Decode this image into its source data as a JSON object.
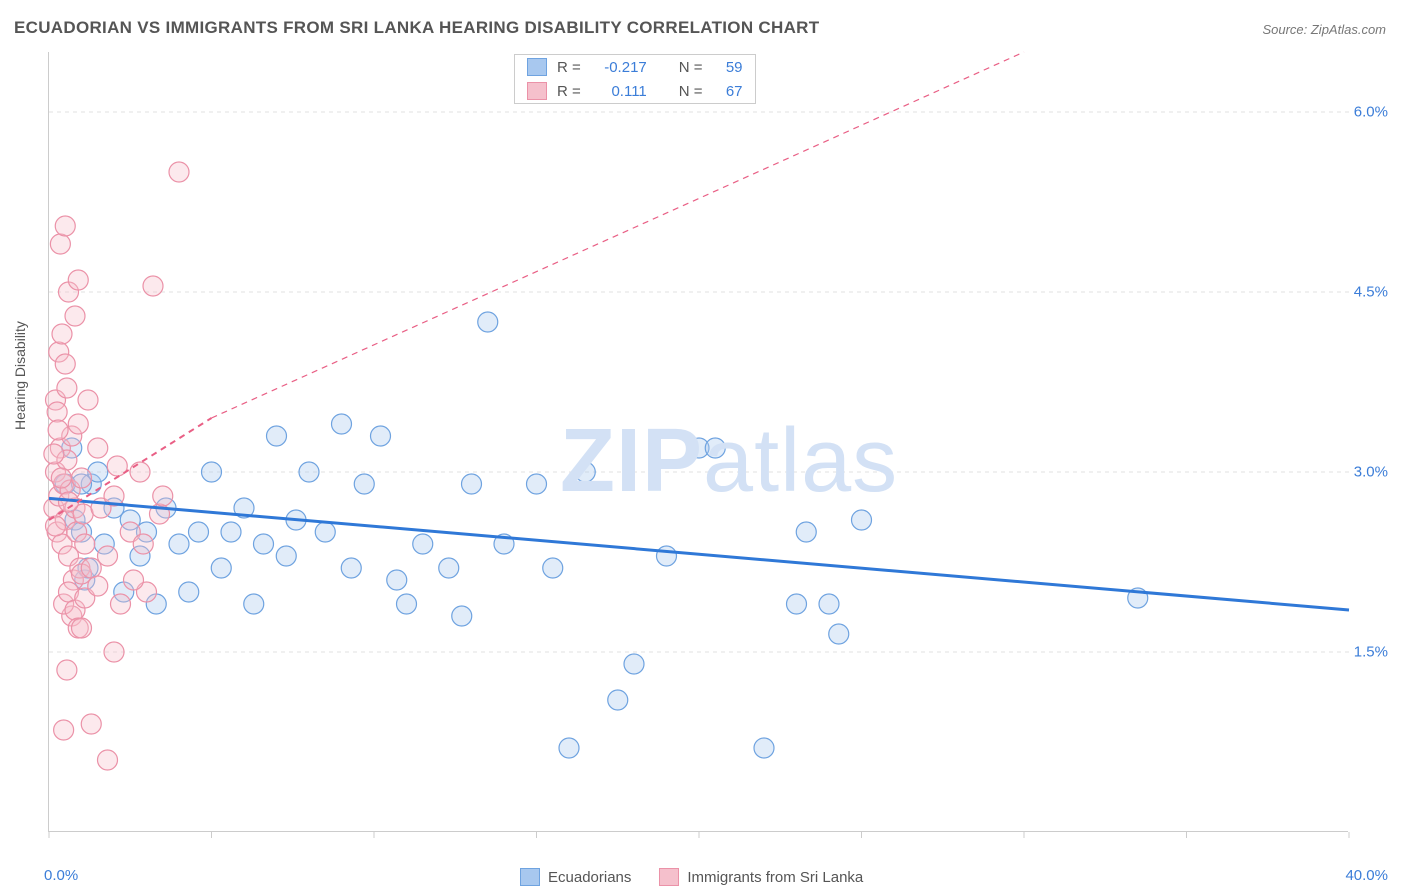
{
  "title": "ECUADORIAN VS IMMIGRANTS FROM SRI LANKA HEARING DISABILITY CORRELATION CHART",
  "source_label": "Source: ZipAtlas.com",
  "y_axis_label": "Hearing Disability",
  "watermark": {
    "bold": "ZIP",
    "light": "atlas"
  },
  "chart": {
    "type": "scatter",
    "background_color": "#ffffff",
    "grid_color": "#e0e0e0",
    "axis_color": "#cccccc",
    "tick_label_color": "#3b7dd8",
    "text_color": "#555555",
    "xlim": [
      0,
      40
    ],
    "ylim": [
      0,
      6.5
    ],
    "x_ticks": [
      0,
      5,
      10,
      15,
      20,
      25,
      30,
      35,
      40
    ],
    "x_tick_labels": {
      "0": "0.0%",
      "40": "40.0%"
    },
    "y_ticks": [
      1.5,
      3.0,
      4.5,
      6.0
    ],
    "y_tick_labels": [
      "1.5%",
      "3.0%",
      "4.5%",
      "6.0%"
    ],
    "marker_radius": 10,
    "marker_stroke_width": 1.2,
    "marker_fill_opacity": 0.35,
    "series": [
      {
        "name": "Ecuadorians",
        "color_fill": "#a8c8ef",
        "color_stroke": "#6fa3e0",
        "R": "-0.217",
        "N": "59",
        "regression": {
          "x1": 0,
          "y1": 2.78,
          "x2": 40,
          "y2": 1.85,
          "color": "#2f78d7",
          "width": 3,
          "dash": "none"
        },
        "points": [
          [
            0.5,
            2.9
          ],
          [
            0.7,
            3.2
          ],
          [
            0.8,
            2.6
          ],
          [
            1.0,
            2.5
          ],
          [
            1.1,
            2.1
          ],
          [
            1.3,
            2.9
          ],
          [
            1.5,
            3.0
          ],
          [
            1.7,
            2.4
          ],
          [
            2.0,
            2.7
          ],
          [
            2.3,
            2.0
          ],
          [
            2.5,
            2.6
          ],
          [
            2.8,
            2.3
          ],
          [
            3.0,
            2.5
          ],
          [
            3.3,
            1.9
          ],
          [
            3.6,
            2.7
          ],
          [
            4.0,
            2.4
          ],
          [
            4.3,
            2.0
          ],
          [
            4.6,
            2.5
          ],
          [
            5.0,
            3.0
          ],
          [
            5.3,
            2.2
          ],
          [
            5.6,
            2.5
          ],
          [
            6.0,
            2.7
          ],
          [
            6.3,
            1.9
          ],
          [
            6.6,
            2.4
          ],
          [
            7.0,
            3.3
          ],
          [
            7.3,
            2.3
          ],
          [
            7.6,
            2.6
          ],
          [
            8.0,
            3.0
          ],
          [
            8.5,
            2.5
          ],
          [
            9.0,
            3.4
          ],
          [
            9.3,
            2.2
          ],
          [
            9.7,
            2.9
          ],
          [
            10.2,
            3.3
          ],
          [
            10.7,
            2.1
          ],
          [
            11.0,
            1.9
          ],
          [
            11.5,
            2.4
          ],
          [
            12.3,
            2.2
          ],
          [
            12.7,
            1.8
          ],
          [
            13.0,
            2.9
          ],
          [
            13.5,
            4.25
          ],
          [
            14.0,
            2.4
          ],
          [
            15.0,
            2.9
          ],
          [
            15.5,
            2.2
          ],
          [
            16.0,
            0.7
          ],
          [
            16.5,
            3.0
          ],
          [
            17.5,
            1.1
          ],
          [
            18.0,
            1.4
          ],
          [
            19.0,
            2.3
          ],
          [
            20.0,
            3.2
          ],
          [
            20.5,
            3.2
          ],
          [
            22.0,
            0.7
          ],
          [
            23.0,
            1.9
          ],
          [
            23.3,
            2.5
          ],
          [
            24.0,
            1.9
          ],
          [
            24.3,
            1.65
          ],
          [
            25.0,
            2.6
          ],
          [
            33.5,
            1.95
          ],
          [
            1.0,
            2.9
          ],
          [
            1.2,
            2.2
          ]
        ]
      },
      {
        "name": "Immigrants from Sri Lanka",
        "color_fill": "#f5c0cc",
        "color_stroke": "#eb92a8",
        "R": "0.111",
        "N": "67",
        "regression": {
          "x1": 0,
          "y1": 2.6,
          "x2": 5,
          "y2": 3.45,
          "extrap_x2": 30,
          "extrap_y2": 6.5,
          "color": "#e95f85",
          "width": 2,
          "dash": "6,5"
        },
        "points": [
          [
            0.15,
            2.7
          ],
          [
            0.2,
            3.0
          ],
          [
            0.25,
            2.5
          ],
          [
            0.3,
            2.8
          ],
          [
            0.35,
            3.2
          ],
          [
            0.4,
            2.4
          ],
          [
            0.45,
            2.9
          ],
          [
            0.5,
            2.6
          ],
          [
            0.55,
            3.1
          ],
          [
            0.6,
            2.3
          ],
          [
            0.65,
            2.85
          ],
          [
            0.7,
            3.3
          ],
          [
            0.75,
            2.1
          ],
          [
            0.8,
            2.7
          ],
          [
            0.85,
            2.5
          ],
          [
            0.9,
            3.4
          ],
          [
            0.95,
            2.2
          ],
          [
            1.0,
            2.95
          ],
          [
            1.05,
            2.65
          ],
          [
            1.1,
            2.4
          ],
          [
            0.3,
            4.0
          ],
          [
            0.4,
            4.15
          ],
          [
            0.5,
            3.9
          ],
          [
            0.6,
            4.5
          ],
          [
            0.8,
            4.3
          ],
          [
            0.9,
            4.6
          ],
          [
            0.35,
            4.9
          ],
          [
            0.5,
            5.05
          ],
          [
            0.2,
            3.6
          ],
          [
            0.25,
            3.5
          ],
          [
            1.2,
            3.6
          ],
          [
            0.7,
            1.8
          ],
          [
            0.45,
            1.9
          ],
          [
            0.6,
            2.0
          ],
          [
            0.8,
            1.85
          ],
          [
            0.9,
            1.7
          ],
          [
            1.0,
            2.15
          ],
          [
            1.1,
            1.95
          ],
          [
            1.3,
            2.2
          ],
          [
            1.5,
            2.05
          ],
          [
            1.6,
            2.7
          ],
          [
            1.8,
            2.3
          ],
          [
            2.0,
            2.8
          ],
          [
            2.2,
            1.9
          ],
          [
            2.5,
            2.5
          ],
          [
            2.8,
            3.0
          ],
          [
            3.0,
            2.0
          ],
          [
            3.2,
            4.55
          ],
          [
            3.4,
            2.65
          ],
          [
            0.45,
            0.85
          ],
          [
            1.3,
            0.9
          ],
          [
            1.8,
            0.6
          ],
          [
            2.0,
            1.5
          ],
          [
            0.55,
            1.35
          ],
          [
            1.0,
            1.7
          ],
          [
            1.5,
            3.2
          ],
          [
            2.1,
            3.05
          ],
          [
            2.6,
            2.1
          ],
          [
            2.9,
            2.4
          ],
          [
            3.5,
            2.8
          ],
          [
            4.0,
            5.5
          ],
          [
            0.15,
            3.15
          ],
          [
            0.2,
            2.55
          ],
          [
            0.28,
            3.35
          ],
          [
            0.55,
            3.7
          ],
          [
            0.38,
            2.95
          ],
          [
            0.6,
            2.75
          ]
        ]
      }
    ]
  },
  "legend_top": {
    "R_label": "R =",
    "N_label": "N ="
  },
  "legend_bottom": {
    "items": [
      "Ecuadorians",
      "Immigrants from Sri Lanka"
    ]
  }
}
